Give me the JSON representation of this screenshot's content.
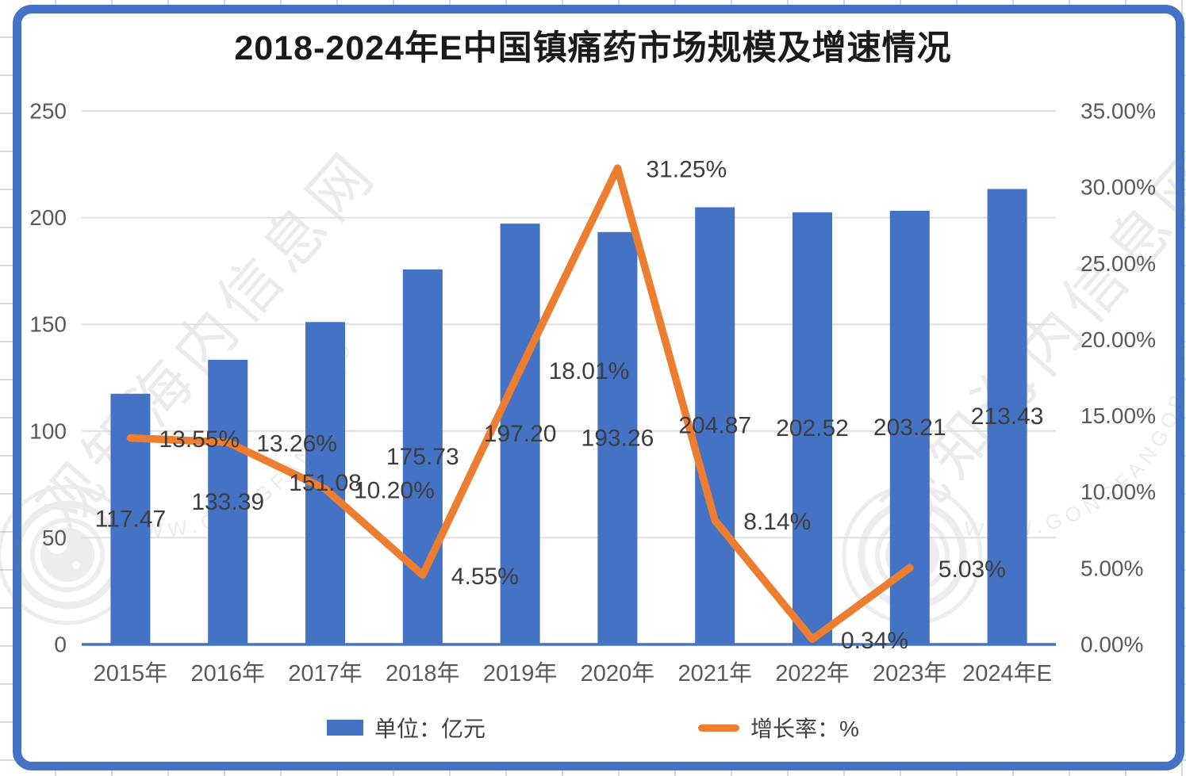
{
  "chart_data": {
    "type": "bar+line",
    "title": "2018-2024年E中国镇痛药市场规模及增速情况",
    "categories": [
      "2015年",
      "2016年",
      "2017年",
      "2018年",
      "2019年",
      "2020年",
      "2021年",
      "2022年",
      "2023年",
      "2024年E"
    ],
    "series": [
      {
        "name": "单位：亿元",
        "type": "bar",
        "axis": "left",
        "color": "#4472C4",
        "values": [
          117.47,
          133.39,
          151.08,
          175.73,
          197.2,
          193.26,
          204.87,
          202.52,
          203.21,
          213.43
        ],
        "labels": [
          "117.47",
          "133.39",
          "151.08",
          "175.73",
          "197.20",
          "193.26",
          "204.87",
          "202.52",
          "203.21",
          "213.43"
        ]
      },
      {
        "name": "增长率：%",
        "type": "line",
        "axis": "right",
        "color": "#ED7D31",
        "values": [
          13.55,
          13.26,
          10.2,
          4.55,
          18.01,
          31.25,
          8.14,
          0.34,
          5.03,
          null
        ],
        "labels": [
          "13.55%",
          "13.26%",
          "10.20%",
          "4.55%",
          "18.01%",
          "31.25%",
          "8.14%",
          "0.34%",
          "5.03%",
          ""
        ]
      }
    ],
    "left_axis": {
      "min": 0,
      "max": 250,
      "tick_values": [
        250,
        200,
        150,
        100,
        50,
        0
      ],
      "tick_labels": [
        "250",
        "200",
        "150",
        "100",
        "50",
        "0"
      ]
    },
    "right_axis": {
      "min": 0,
      "max": 35,
      "tick_values": [
        35,
        30,
        25,
        20,
        15,
        10,
        5,
        0
      ],
      "tick_labels": [
        "35.00%",
        "30.00%",
        "25.00%",
        "20.00%",
        "15.00%",
        "10.00%",
        "5.00%",
        "0.00%"
      ]
    },
    "grid": true,
    "legend_position": "bottom"
  },
  "legend": {
    "items": [
      {
        "label": "单位：亿元",
        "swatch": "bar",
        "color": "#4472C4"
      },
      {
        "label": "增长率：%",
        "swatch": "line",
        "color": "#ED7D31"
      }
    ]
  },
  "watermark": {
    "site_name": "观知海内信息网",
    "site_url": "WWW.GONGFANGQB.COM"
  },
  "colors": {
    "bar": "#4472C4",
    "line": "#ED7D31",
    "frame_border": "#4472C4",
    "gridline": "#DFDFDF",
    "axis_text": "#595959",
    "data_label_text": "#3D3D3D",
    "title_text": "#1A1A1A"
  }
}
